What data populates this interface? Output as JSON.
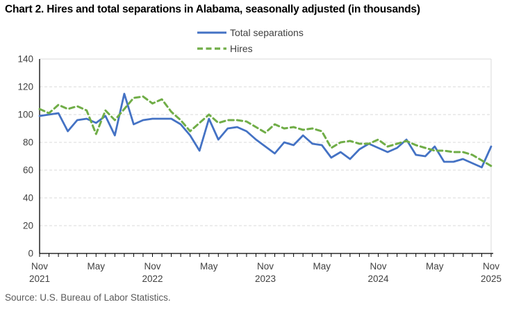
{
  "title": "Chart 2. Hires and total separations in Alabama, seasonally adjusted (in thousands)",
  "source": "Source: U.S. Bureau of Labor Statistics.",
  "colors": {
    "separations_line": "#4472C4",
    "hires_line": "#70AD47",
    "gridline": "#D9D9D9",
    "axis": "#000000",
    "tick_text": "#404040",
    "source_text": "#595959"
  },
  "chart_data": {
    "type": "line",
    "title": "Chart 2. Hires and total separations in Alabama, seasonally adjusted (in thousands)",
    "xlabel": "",
    "ylabel": "",
    "ylim": [
      0,
      140
    ],
    "y_ticks": [
      0,
      20,
      40,
      60,
      80,
      100,
      120,
      140
    ],
    "grid": "dashed horizontal",
    "legend_position": "top center",
    "x": [
      "Nov 2021",
      "Dec 2021",
      "Jan 2022",
      "Feb 2022",
      "Mar 2022",
      "Apr 2022",
      "May 2022",
      "Jun 2022",
      "Jul 2022",
      "Aug 2022",
      "Sep 2022",
      "Oct 2022",
      "Nov 2022",
      "Dec 2022",
      "Jan 2023",
      "Feb 2023",
      "Mar 2023",
      "Apr 2023",
      "May 2023",
      "Jun 2023",
      "Jul 2023",
      "Aug 2023",
      "Sep 2023",
      "Oct 2023",
      "Nov 2023",
      "Dec 2023",
      "Jan 2024",
      "Feb 2024",
      "Mar 2024",
      "Apr 2024",
      "May 2024",
      "Jun 2024",
      "Jul 2024",
      "Aug 2024",
      "Sep 2024",
      "Oct 2024",
      "Nov 2024",
      "Dec 2024",
      "Jan 2025",
      "Feb 2025",
      "Mar 2025",
      "Apr 2025",
      "May 2025",
      "Jun 2025",
      "Jul 2025",
      "Aug 2025",
      "Sep 2025",
      "Oct 2025",
      "Nov 2025"
    ],
    "x_tick_labels": [
      {
        "line1": "Nov",
        "line2": "2021",
        "monthIndex": 0
      },
      {
        "line1": "May",
        "line2": "",
        "monthIndex": 6
      },
      {
        "line1": "Nov",
        "line2": "2022",
        "monthIndex": 12
      },
      {
        "line1": "May",
        "line2": "",
        "monthIndex": 18
      },
      {
        "line1": "Nov",
        "line2": "2023",
        "monthIndex": 24
      },
      {
        "line1": "May",
        "line2": "",
        "monthIndex": 30
      },
      {
        "line1": "Nov",
        "line2": "2024",
        "monthIndex": 36
      },
      {
        "line1": "May",
        "line2": "",
        "monthIndex": 42
      },
      {
        "line1": "Nov",
        "line2": "2025",
        "monthIndex": 48
      }
    ],
    "series": [
      {
        "name": "Total separations",
        "color": "#4472C4",
        "style": "solid",
        "values": [
          99,
          100,
          101,
          88,
          96,
          97,
          94,
          99,
          85,
          115,
          93,
          96,
          97,
          97,
          97,
          93,
          85,
          74,
          97,
          82,
          90,
          91,
          88,
          82,
          77,
          72,
          80,
          78,
          85,
          79,
          78,
          69,
          73,
          68,
          75,
          79,
          76,
          73,
          76,
          82,
          71,
          70,
          77,
          66,
          66,
          68,
          65,
          62,
          77
        ]
      },
      {
        "name": "Hires",
        "color": "#70AD47",
        "style": "dashed",
        "values": [
          104,
          101,
          107,
          104,
          106,
          103,
          86,
          103,
          96,
          104,
          112,
          113,
          108,
          111,
          102,
          96,
          88,
          94,
          100,
          94,
          96,
          96,
          95,
          91,
          87,
          93,
          90,
          91,
          89,
          90,
          88,
          76,
          80,
          81,
          79,
          79,
          82,
          77,
          79,
          81,
          78,
          76,
          74,
          74,
          73,
          73,
          71,
          67,
          63
        ]
      }
    ]
  }
}
